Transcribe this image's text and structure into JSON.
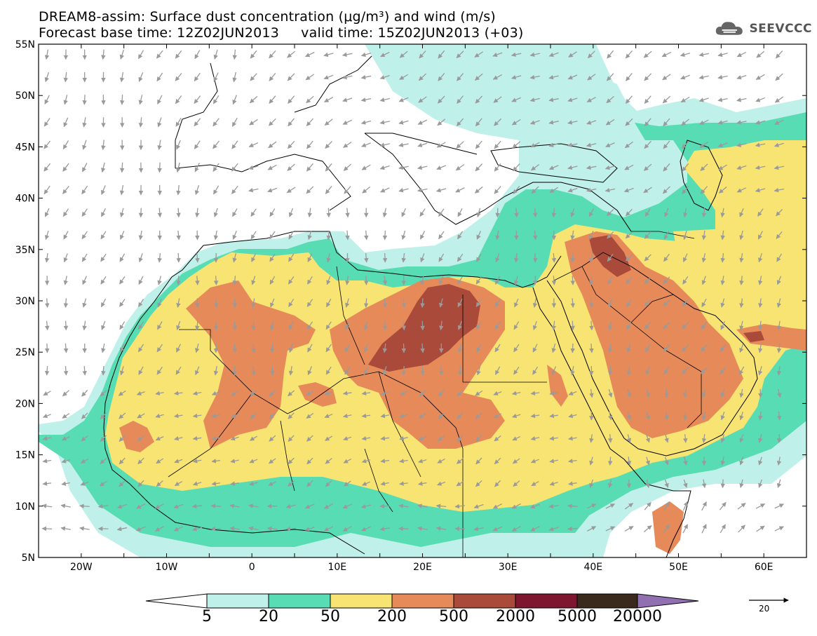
{
  "title": {
    "line1": "DREAM8-assim: Surface dust concentration (μg/m³) and wind (m/s)",
    "line2": "Forecast base time: 12Z02JUN2013     valid time: 15Z02JUN2013 (+03)"
  },
  "logo": {
    "text": "SEEVCCC",
    "icon": "cloud-icon"
  },
  "axes": {
    "lon": [
      "20W",
      "10W",
      "0",
      "10E",
      "20E",
      "30E",
      "40E",
      "50E",
      "60E"
    ],
    "lat": [
      "55N",
      "50N",
      "45N",
      "40N",
      "35N",
      "30N",
      "25N",
      "20N",
      "15N",
      "10N",
      "5N"
    ],
    "lon_range": [
      -25,
      65
    ],
    "lat_range": [
      5,
      55
    ]
  },
  "colorbar": {
    "levels": [
      "5",
      "20",
      "50",
      "200",
      "500",
      "2000",
      "5000",
      "20000"
    ],
    "colors": [
      "#ffffff",
      "#c0f0ea",
      "#58dcb4",
      "#f8e472",
      "#e68a5a",
      "#aa4a3a",
      "#7e1630",
      "#3a2a1e",
      "#9070b0"
    ]
  },
  "wind_reference": {
    "label": "20",
    "unit": "m/s"
  },
  "colors": {
    "c5": "#c0f0ea",
    "c20": "#58dcb4",
    "c50": "#f8e472",
    "c200": "#e68a5a",
    "c500": "#aa4a3a",
    "wind": "#9a9a9a",
    "coast": "#000000"
  }
}
